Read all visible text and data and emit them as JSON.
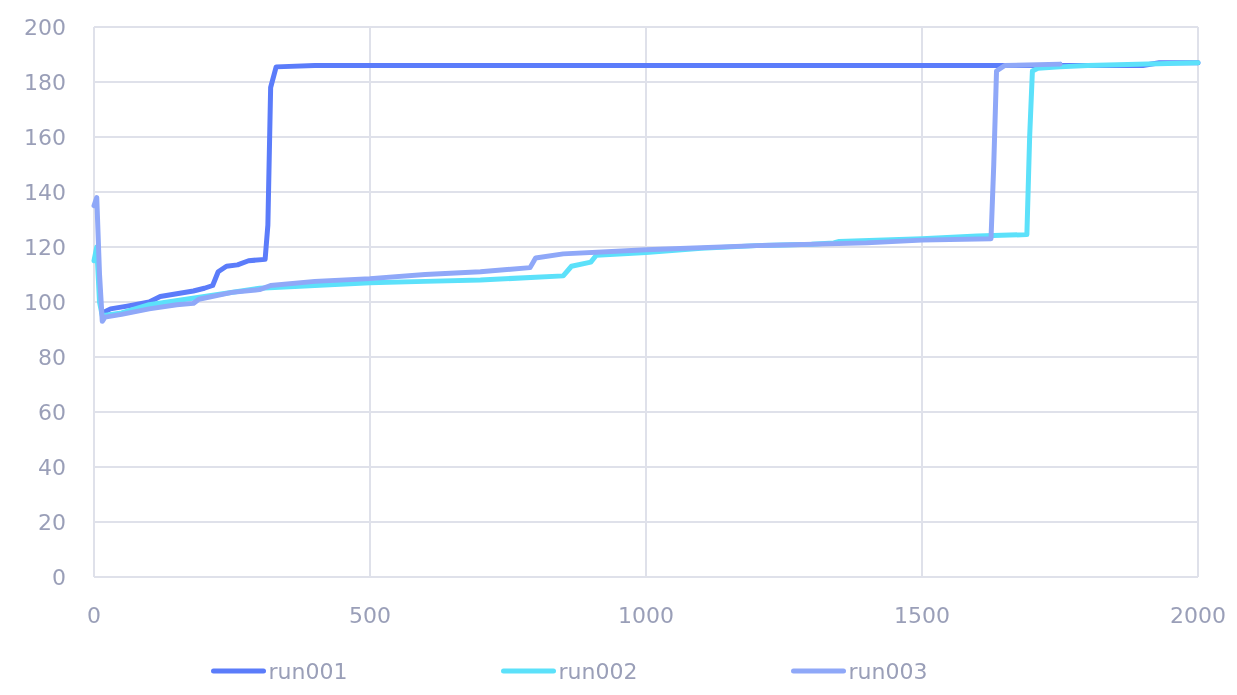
{
  "chart_data": {
    "type": "line",
    "xlim": [
      0,
      2000
    ],
    "xticks": [
      0,
      500,
      1000,
      1500,
      2000
    ],
    "ylim": [
      0,
      200
    ],
    "yticks": [
      0,
      20,
      40,
      60,
      80,
      100,
      120,
      140,
      160,
      180,
      200
    ],
    "grid": true,
    "legend": "bottom",
    "series": [
      {
        "name": "run001",
        "color": "#5b7cfa",
        "x": [
          15,
          30,
          60,
          100,
          120,
          150,
          180,
          200,
          215,
          225,
          240,
          260,
          280,
          310,
          315,
          320,
          330,
          400,
          1000,
          1600,
          1900,
          1930,
          2000
        ],
        "values": [
          96,
          97.5,
          98.5,
          100,
          102,
          103,
          104,
          105,
          106,
          111,
          113,
          113.5,
          115,
          115.5,
          128,
          178,
          185.5,
          186,
          186,
          186,
          186,
          187,
          187
        ]
      },
      {
        "name": "run002",
        "color": "#5ce1fa",
        "x": [
          0,
          5,
          10,
          15,
          50,
          100,
          200,
          300,
          400,
          500,
          600,
          700,
          800,
          850,
          865,
          900,
          910,
          1000,
          1100,
          1200,
          1300,
          1340,
          1350,
          1500,
          1600,
          1690,
          1695,
          1700,
          1710,
          1750,
          1800,
          2000
        ],
        "values": [
          115,
          120,
          100,
          95,
          96,
          99,
          102,
          105,
          106,
          107,
          107.5,
          108,
          109,
          109.5,
          113,
          114.5,
          117,
          118,
          119.5,
          120.5,
          121,
          121.5,
          122,
          123,
          124,
          124.5,
          160,
          184,
          185,
          185.5,
          186,
          187
        ]
      },
      {
        "name": "run003",
        "color": "#8fa8f8",
        "x": [
          0,
          5,
          10,
          15,
          20,
          50,
          100,
          150,
          180,
          190,
          250,
          300,
          320,
          400,
          500,
          600,
          700,
          790,
          800,
          850,
          1000,
          1200,
          1400,
          1500,
          1625,
          1630,
          1635,
          1650,
          1750
        ],
        "values": [
          135,
          138,
          110,
          93,
          94.5,
          95.5,
          97.5,
          99,
          99.5,
          101,
          103.5,
          104.5,
          106,
          107.5,
          108.5,
          110,
          111,
          112.5,
          116,
          117.5,
          119,
          120.5,
          121.5,
          122.5,
          123,
          150,
          184,
          186,
          186.5
        ]
      }
    ]
  }
}
